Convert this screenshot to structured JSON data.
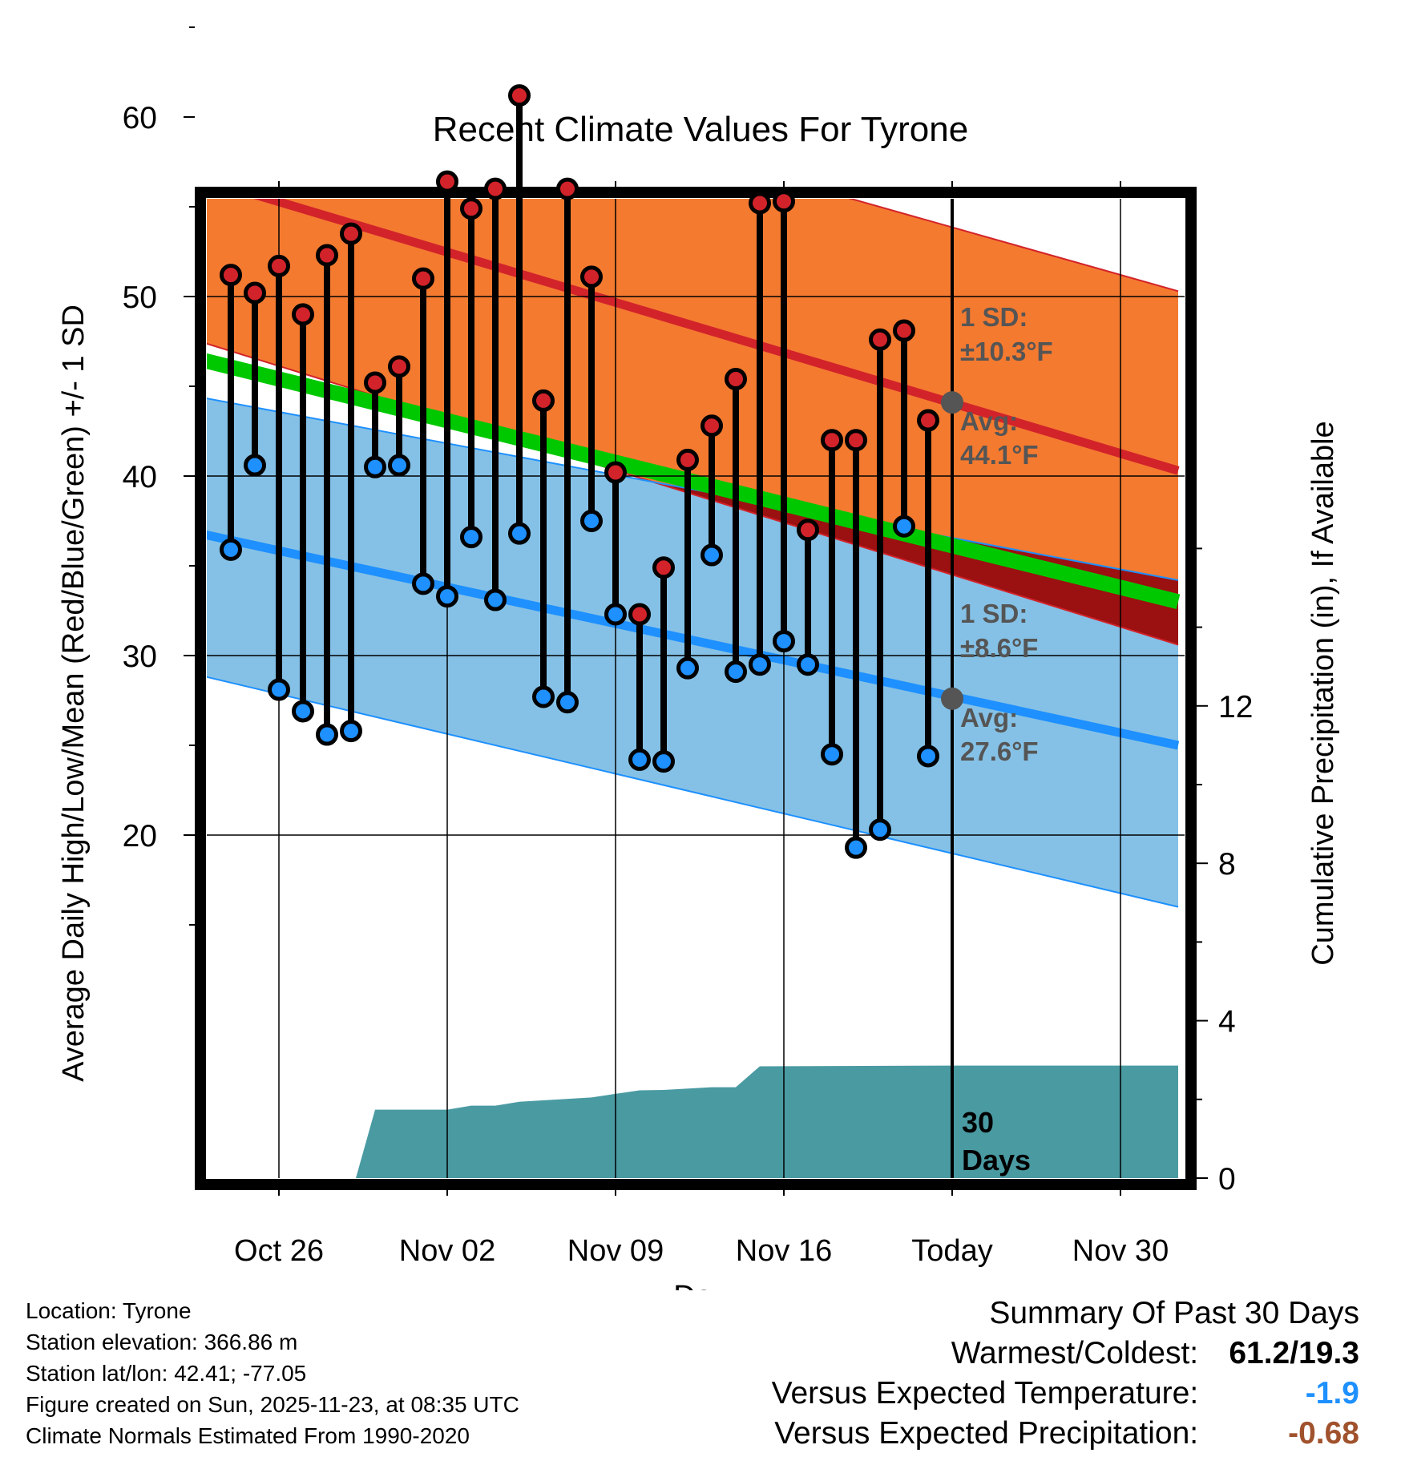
{
  "chart_data": {
    "type": "climate-range",
    "title": "Recent Climate Values For Tyrone",
    "xlabel": "Day",
    "ylabel": "Average Daily High/Low/Mean (Red/Blue/Green) +/- 1 SD",
    "y2label": "Cumulative Precipitation (in), If Available",
    "x_range": [
      -3.3,
      37.4
    ],
    "ylim": [
      11.5,
      66
    ],
    "y_ticks": [
      20,
      30,
      40,
      50,
      60
    ],
    "y2lim": [
      0,
      17.67
    ],
    "y2_ticks": [
      0,
      4,
      8,
      12
    ],
    "x_ticks": [
      {
        "day": 0,
        "label": "Oct 26"
      },
      {
        "day": 7,
        "label": "Nov 02"
      },
      {
        "day": 14,
        "label": "Nov 09"
      },
      {
        "day": 21,
        "label": "Nov 16"
      },
      {
        "day": 28,
        "label": "Today"
      },
      {
        "day": 35,
        "label": "Nov 30"
      }
    ],
    "today_day": 28,
    "today_label": [
      "30",
      "Days"
    ],
    "normals": {
      "high_avg": {
        "start": 56.6,
        "end": 40.3
      },
      "high_upper": {
        "start": 65.7,
        "end": 50.3
      },
      "high_lower": {
        "start": 47.5,
        "end": 30.6
      },
      "low_avg": {
        "start": 36.8,
        "end": 25.0
      },
      "low_upper": {
        "start": 44.4,
        "end": 34.2
      },
      "low_lower": {
        "start": 28.9,
        "end": 16.0
      },
      "mean_avg": {
        "start": 46.5,
        "end": 33.0
      }
    },
    "high_marker": {
      "day": 28,
      "value": 44.1,
      "labels": [
        "1 SD:",
        "±10.3°F",
        "Avg:",
        "44.1°F"
      ]
    },
    "low_marker": {
      "day": 28,
      "value": 27.6,
      "labels": [
        "1 SD:",
        "±8.6°F",
        "Avg:",
        "27.6°F"
      ]
    },
    "daily": [
      {
        "day": -2,
        "high": 51.2,
        "low": 35.9
      },
      {
        "day": -1,
        "high": 50.2,
        "low": 40.6
      },
      {
        "day": 0,
        "high": 51.7,
        "low": 28.1
      },
      {
        "day": 1,
        "high": 49.0,
        "low": 26.9
      },
      {
        "day": 2,
        "high": 52.3,
        "low": 25.6
      },
      {
        "day": 3,
        "high": 53.5,
        "low": 25.8
      },
      {
        "day": 4,
        "high": 45.2,
        "low": 40.5
      },
      {
        "day": 5,
        "high": 46.1,
        "low": 40.6
      },
      {
        "day": 6,
        "high": 51.0,
        "low": 34.0
      },
      {
        "day": 7,
        "high": 56.4,
        "low": 33.3
      },
      {
        "day": 8,
        "high": 54.9,
        "low": 36.6
      },
      {
        "day": 9,
        "high": 56.0,
        "low": 33.1
      },
      {
        "day": 10,
        "high": 61.2,
        "low": 36.8
      },
      {
        "day": 11,
        "high": 44.2,
        "low": 27.7
      },
      {
        "day": 12,
        "high": 56.0,
        "low": 27.4
      },
      {
        "day": 13,
        "high": 51.1,
        "low": 37.5
      },
      {
        "day": 14,
        "high": 40.2,
        "low": 32.3
      },
      {
        "day": 15,
        "high": 32.3,
        "low": 24.2
      },
      {
        "day": 16,
        "high": 34.9,
        "low": 24.1
      },
      {
        "day": 17,
        "high": 40.9,
        "low": 29.3
      },
      {
        "day": 18,
        "high": 42.8,
        "low": 35.6
      },
      {
        "day": 19,
        "high": 45.4,
        "low": 29.1
      },
      {
        "day": 20,
        "high": 55.2,
        "low": 29.5
      },
      {
        "day": 21,
        "high": 55.3,
        "low": 30.8
      },
      {
        "day": 22,
        "high": 37.0,
        "low": 29.5
      },
      {
        "day": 23,
        "high": 42.0,
        "low": 24.5
      },
      {
        "day": 24,
        "high": 42.0,
        "low": 19.3
      },
      {
        "day": 25,
        "high": 47.6,
        "low": 20.3
      },
      {
        "day": 26,
        "high": 48.1,
        "low": 37.2
      },
      {
        "day": 27,
        "high": 43.1,
        "low": 24.4
      }
    ],
    "precip_cumulative": [
      {
        "day": 3.2,
        "value": 0.0
      },
      {
        "day": 4,
        "value": 1.74
      },
      {
        "day": 7,
        "value": 1.74
      },
      {
        "day": 8,
        "value": 1.84
      },
      {
        "day": 9,
        "value": 1.84
      },
      {
        "day": 10,
        "value": 1.94
      },
      {
        "day": 13,
        "value": 2.05
      },
      {
        "day": 15,
        "value": 2.23
      },
      {
        "day": 16,
        "value": 2.24
      },
      {
        "day": 18,
        "value": 2.31
      },
      {
        "day": 19,
        "value": 2.31
      },
      {
        "day": 20,
        "value": 2.84
      },
      {
        "day": 28,
        "value": 2.86
      },
      {
        "day": 37.4,
        "value": 2.86
      }
    ],
    "colors": {
      "high_band": "#f47a30",
      "high_line": "#d2232a",
      "low_band": "#85c1e6",
      "low_line": "#1e90ff",
      "mean_line": "#00c800",
      "overlap_band": "#9b1010",
      "precip": "#4a9aa2",
      "marker_label": "#555555"
    }
  },
  "footer": {
    "location": "Location: Tyrone",
    "elevation": "Station elevation: 366.86 m",
    "latlon": "Station lat/lon: 42.41; -77.05",
    "created": "Figure created on Sun, 2025-11-23, at 08:35 UTC",
    "normals": "Climate Normals Estimated From 1990-2020"
  },
  "summary": {
    "title": "Summary Of Past 30 Days",
    "warmest_label": "Warmest/Coldest:",
    "warmest_value": "61.2/19.3",
    "temp_label": "Versus Expected Temperature:",
    "temp_value": "-1.9",
    "temp_color": "#1e90ff",
    "precip_label": "Versus Expected Precipitation:",
    "precip_value": "-0.68",
    "precip_color": "#a0522d"
  }
}
